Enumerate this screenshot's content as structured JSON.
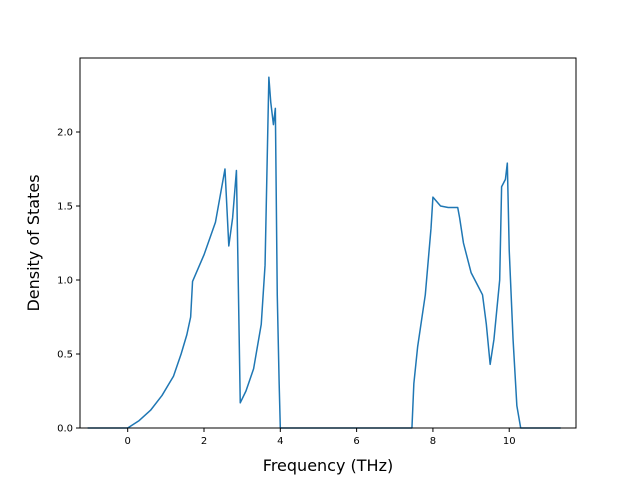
{
  "chart_data": {
    "type": "line",
    "title": "",
    "xlabel": "Frequency (THz)",
    "ylabel": "Density of States",
    "xlim": [
      -1.25,
      11.75
    ],
    "ylim": [
      0,
      2.5
    ],
    "xticks": [
      0,
      2,
      4,
      6,
      8,
      10
    ],
    "yticks": [
      0.0,
      0.5,
      1.0,
      1.5,
      2.0
    ],
    "xtick_labels": [
      "0",
      "2",
      "4",
      "6",
      "8",
      "10"
    ],
    "ytick_labels": [
      "0.0",
      "0.5",
      "1.0",
      "1.5",
      "2.0"
    ],
    "grid": false,
    "legend": "none",
    "series": [
      {
        "color": "#1f77b4",
        "x": [
          -1.05,
          0.0,
          0.3,
          0.6,
          0.9,
          1.2,
          1.4,
          1.55,
          1.65,
          1.7,
          2.0,
          2.3,
          2.55,
          2.65,
          2.75,
          2.85,
          2.95,
          3.1,
          3.3,
          3.5,
          3.6,
          3.7,
          3.75,
          3.82,
          3.87,
          3.92,
          3.97,
          4.0,
          5.0,
          6.0,
          7.0,
          7.45,
          7.5,
          7.6,
          7.8,
          7.95,
          8.0,
          8.2,
          8.4,
          8.6,
          8.65,
          8.7,
          8.8,
          9.0,
          9.2,
          9.3,
          9.4,
          9.5,
          9.6,
          9.75,
          9.8,
          9.9,
          9.95,
          10.0,
          10.1,
          10.2,
          10.3,
          10.5,
          11.35
        ],
        "y": [
          0,
          0,
          0.05,
          0.12,
          0.22,
          0.35,
          0.5,
          0.63,
          0.75,
          0.99,
          1.17,
          1.39,
          1.75,
          1.23,
          1.42,
          1.74,
          0.17,
          0.25,
          0.4,
          0.7,
          1.1,
          2.37,
          2.2,
          2.05,
          2.16,
          0.9,
          0.3,
          0,
          0,
          0,
          0,
          0,
          0.3,
          0.55,
          0.9,
          1.35,
          1.56,
          1.5,
          1.49,
          1.49,
          1.49,
          1.42,
          1.25,
          1.05,
          0.95,
          0.9,
          0.7,
          0.43,
          0.6,
          1.0,
          1.63,
          1.68,
          1.79,
          1.2,
          0.6,
          0.15,
          0,
          0,
          0
        ]
      }
    ]
  }
}
